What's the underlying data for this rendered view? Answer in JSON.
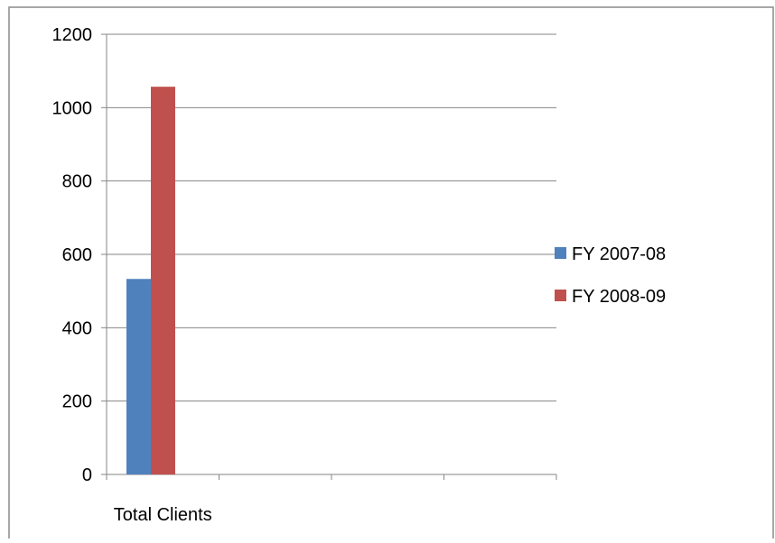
{
  "chart_data": {
    "type": "bar",
    "title": "",
    "xlabel": "",
    "ylabel": "",
    "categories": [
      "Total Clients",
      "",
      "",
      ""
    ],
    "series": [
      {
        "name": "FY 2007-08",
        "color": "#4f81bd",
        "values": [
          533,
          null,
          null,
          null
        ]
      },
      {
        "name": "FY 2008-09",
        "color": "#c0504d",
        "values": [
          1057,
          null,
          null,
          null
        ]
      }
    ],
    "ylim": [
      0,
      1200
    ],
    "yticks": [
      0,
      200,
      400,
      600,
      800,
      1000,
      1200
    ],
    "grid": true,
    "legend": "right"
  }
}
